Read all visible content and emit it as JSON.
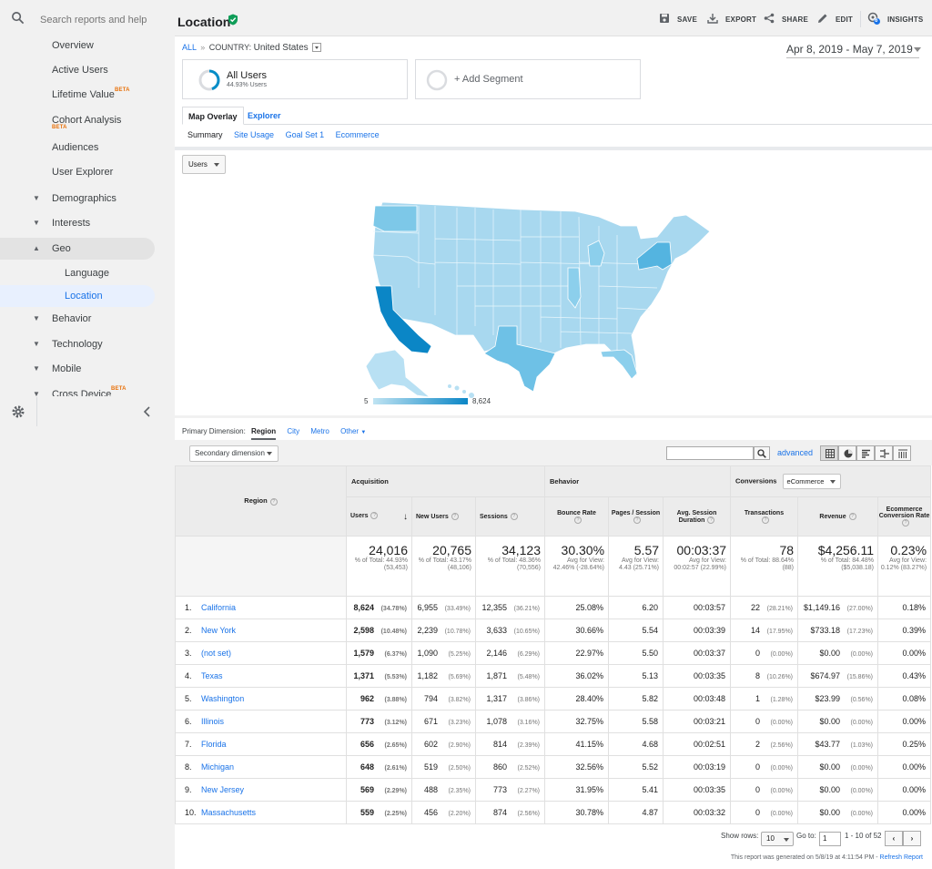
{
  "sidebar": {
    "search_placeholder": "Search reports and help",
    "items": [
      {
        "label": "Overview"
      },
      {
        "label": "Active Users"
      },
      {
        "label": "Lifetime Value",
        "badge": "BETA"
      },
      {
        "label": "Cohort Analysis",
        "badge": "BETA"
      },
      {
        "label": "Audiences"
      },
      {
        "label": "User Explorer"
      },
      {
        "label": "Demographics"
      },
      {
        "label": "Interests"
      },
      {
        "label": "Geo"
      },
      {
        "label": "Language"
      },
      {
        "label": "Location"
      },
      {
        "label": "Behavior"
      },
      {
        "label": "Technology"
      },
      {
        "label": "Mobile"
      },
      {
        "label": "Cross Device",
        "badge": "BETA"
      }
    ]
  },
  "header": {
    "title": "Location",
    "save": "SAVE",
    "export": "EXPORT",
    "share": "SHARE",
    "edit": "EDIT",
    "insights": "INSIGHTS",
    "insights_count": "6"
  },
  "crumbs": {
    "all": "ALL",
    "sep": "»",
    "label": "COUNTRY:",
    "value": "United States"
  },
  "date_range": "Apr 8, 2019 - May 7, 2019",
  "segments": {
    "all_users": "All Users",
    "all_users_pct": "44.93% Users",
    "all_users_fraction": 0.4493,
    "add": "+ Add Segment"
  },
  "tabs": {
    "map_overlay": "Map Overlay",
    "explorer": "Explorer"
  },
  "subtabs": [
    "Summary",
    "Site Usage",
    "Goal Set 1",
    "Ecommerce"
  ],
  "map": {
    "metric_dropdown": "Users",
    "legend_min": "5",
    "legend_max": "8,624",
    "colors": {
      "low": "#bfe3f2",
      "high": "#0b86c6"
    }
  },
  "primary_dimension": {
    "label": "Primary Dimension:",
    "options": [
      "Region",
      "City",
      "Metro",
      "Other"
    ]
  },
  "controls": {
    "secondary": "Secondary dimension",
    "advanced": "advanced",
    "conversion_select": "eCommerce"
  },
  "table": {
    "group_headers": {
      "acq": "Acquisition",
      "beh": "Behavior",
      "conv": "Conversions"
    },
    "region_header": "Region",
    "columns": [
      "Users",
      "New Users",
      "Sessions",
      "Bounce Rate",
      "Pages / Session",
      "Avg. Session Duration",
      "Transactions",
      "Revenue",
      "Ecommerce Conversion Rate"
    ],
    "totals": [
      {
        "v": "24,016",
        "s": "% of Total: 44.93% (53,453)"
      },
      {
        "v": "20,765",
        "s": "% of Total: 43.17% (48,106)"
      },
      {
        "v": "34,123",
        "s": "% of Total: 48.36% (70,556)"
      },
      {
        "v": "30.30%",
        "s": "Avg for View: 42.46% (-28.64%)"
      },
      {
        "v": "5.57",
        "s": "Avg for View: 4.43 (25.71%)"
      },
      {
        "v": "00:03:37",
        "s": "Avg for View: 00:02:57 (22.99%)"
      },
      {
        "v": "78",
        "s": "% of Total: 88.64% (88)"
      },
      {
        "v": "$4,256.11",
        "s": "% of Total: 84.48% ($5,038.18)"
      },
      {
        "v": "0.23%",
        "s": "Avg for View: 0.12% (83.27%)"
      }
    ],
    "rows": [
      {
        "n": "1.",
        "region": "California",
        "users": "8,624",
        "users_p": "(34.78%)",
        "new": "6,955",
        "new_p": "(33.49%)",
        "sess": "12,355",
        "sess_p": "(36.21%)",
        "bounce": "25.08%",
        "pages": "6.20",
        "dur": "00:03:57",
        "trans": "22",
        "trans_p": "(28.21%)",
        "rev": "$1,149.16",
        "rev_p": "(27.00%)",
        "conv": "0.18%"
      },
      {
        "n": "2.",
        "region": "New York",
        "users": "2,598",
        "users_p": "(10.48%)",
        "new": "2,239",
        "new_p": "(10.78%)",
        "sess": "3,633",
        "sess_p": "(10.65%)",
        "bounce": "30.66%",
        "pages": "5.54",
        "dur": "00:03:39",
        "trans": "14",
        "trans_p": "(17.95%)",
        "rev": "$733.18",
        "rev_p": "(17.23%)",
        "conv": "0.39%"
      },
      {
        "n": "3.",
        "region": "(not set)",
        "users": "1,579",
        "users_p": "(6.37%)",
        "new": "1,090",
        "new_p": "(5.25%)",
        "sess": "2,146",
        "sess_p": "(6.29%)",
        "bounce": "22.97%",
        "pages": "5.50",
        "dur": "00:03:37",
        "trans": "0",
        "trans_p": "(0.00%)",
        "rev": "$0.00",
        "rev_p": "(0.00%)",
        "conv": "0.00%"
      },
      {
        "n": "4.",
        "region": "Texas",
        "users": "1,371",
        "users_p": "(5.53%)",
        "new": "1,182",
        "new_p": "(5.69%)",
        "sess": "1,871",
        "sess_p": "(5.48%)",
        "bounce": "36.02%",
        "pages": "5.13",
        "dur": "00:03:35",
        "trans": "8",
        "trans_p": "(10.26%)",
        "rev": "$674.97",
        "rev_p": "(15.86%)",
        "conv": "0.43%"
      },
      {
        "n": "5.",
        "region": "Washington",
        "users": "962",
        "users_p": "(3.88%)",
        "new": "794",
        "new_p": "(3.82%)",
        "sess": "1,317",
        "sess_p": "(3.86%)",
        "bounce": "28.40%",
        "pages": "5.82",
        "dur": "00:03:48",
        "trans": "1",
        "trans_p": "(1.28%)",
        "rev": "$23.99",
        "rev_p": "(0.56%)",
        "conv": "0.08%"
      },
      {
        "n": "6.",
        "region": "Illinois",
        "users": "773",
        "users_p": "(3.12%)",
        "new": "671",
        "new_p": "(3.23%)",
        "sess": "1,078",
        "sess_p": "(3.16%)",
        "bounce": "32.75%",
        "pages": "5.58",
        "dur": "00:03:21",
        "trans": "0",
        "trans_p": "(0.00%)",
        "rev": "$0.00",
        "rev_p": "(0.00%)",
        "conv": "0.00%"
      },
      {
        "n": "7.",
        "region": "Florida",
        "users": "656",
        "users_p": "(2.65%)",
        "new": "602",
        "new_p": "(2.90%)",
        "sess": "814",
        "sess_p": "(2.39%)",
        "bounce": "41.15%",
        "pages": "4.68",
        "dur": "00:02:51",
        "trans": "2",
        "trans_p": "(2.56%)",
        "rev": "$43.77",
        "rev_p": "(1.03%)",
        "conv": "0.25%"
      },
      {
        "n": "8.",
        "region": "Michigan",
        "users": "648",
        "users_p": "(2.61%)",
        "new": "519",
        "new_p": "(2.50%)",
        "sess": "860",
        "sess_p": "(2.52%)",
        "bounce": "32.56%",
        "pages": "5.52",
        "dur": "00:03:19",
        "trans": "0",
        "trans_p": "(0.00%)",
        "rev": "$0.00",
        "rev_p": "(0.00%)",
        "conv": "0.00%"
      },
      {
        "n": "9.",
        "region": "New Jersey",
        "users": "569",
        "users_p": "(2.29%)",
        "new": "488",
        "new_p": "(2.35%)",
        "sess": "773",
        "sess_p": "(2.27%)",
        "bounce": "31.95%",
        "pages": "5.41",
        "dur": "00:03:35",
        "trans": "0",
        "trans_p": "(0.00%)",
        "rev": "$0.00",
        "rev_p": "(0.00%)",
        "conv": "0.00%"
      },
      {
        "n": "10.",
        "region": "Massachusetts",
        "users": "559",
        "users_p": "(2.25%)",
        "new": "456",
        "new_p": "(2.20%)",
        "sess": "874",
        "sess_p": "(2.56%)",
        "bounce": "30.78%",
        "pages": "4.87",
        "dur": "00:03:32",
        "trans": "0",
        "trans_p": "(0.00%)",
        "rev": "$0.00",
        "rev_p": "(0.00%)",
        "conv": "0.00%"
      }
    ]
  },
  "footer": {
    "show_rows": "Show rows:",
    "rows_value": "10",
    "goto": "Go to:",
    "goto_value": "1",
    "range": "1 - 10 of 52",
    "generated": "This report was generated on 5/8/19 at 4:11:54 PM -",
    "refresh": "Refresh Report"
  }
}
